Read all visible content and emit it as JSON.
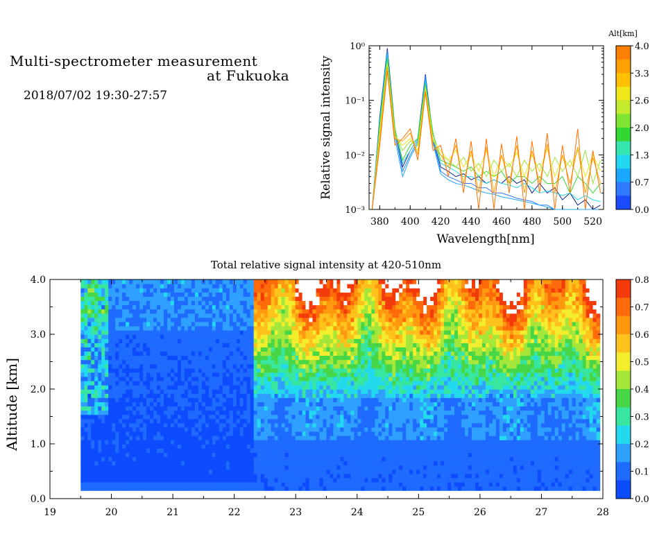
{
  "header": {
    "title_line1": "Multi-spectrometer measurement",
    "title_line2": "at Fukuoka",
    "datetime": "2018/07/02 19:30-27:57"
  },
  "colors": {
    "scale": [
      "#1a4bff",
      "#2f78ff",
      "#19a8ff",
      "#22d8f0",
      "#35e6b0",
      "#33d733",
      "#7ee633",
      "#c3ea2c",
      "#f0e61a",
      "#ffc000",
      "#ffa000",
      "#ff8000"
    ],
    "heat_top": [
      "#0d4bff",
      "#1f6bff",
      "#2fa0ff",
      "#22d9ee",
      "#39e6a0",
      "#46d646",
      "#a4e63a",
      "#f2ee2e",
      "#ffc21c",
      "#ff9a10",
      "#ff6a0a",
      "#f23a0a"
    ]
  },
  "chart_data": [
    {
      "type": "line",
      "xlabel": "Wavelength[nm]",
      "ylabel": "Relative signal intensity",
      "xlim": [
        373,
        527
      ],
      "ylim": [
        0.001,
        1
      ],
      "yscale": "log",
      "xticks": [
        "380",
        "400",
        "420",
        "440",
        "460",
        "480",
        "500",
        "520"
      ],
      "yticks": [
        "10⁰",
        "10⁻¹",
        "10⁻²",
        "10⁻³"
      ],
      "colorbar": {
        "label": "Alt[km]",
        "ticks": [
          "4.0",
          "3.3",
          "2.6",
          "2.0",
          "1.3",
          "0.7",
          "0.0"
        ]
      },
      "x": [
        375,
        380,
        385,
        390,
        395,
        400,
        405,
        410,
        415,
        420,
        425,
        430,
        435,
        440,
        445,
        450,
        455,
        460,
        465,
        470,
        475,
        480,
        485,
        490,
        495,
        500,
        505,
        510,
        515,
        520,
        525
      ],
      "series": [
        {
          "color": "#0a1f8a",
          "values": [
            0.001,
            0.05,
            0.9,
            0.03,
            0.006,
            0.012,
            0.02,
            0.3,
            0.02,
            0.006,
            0.005,
            0.004,
            0.0045,
            0.0035,
            0.004,
            0.003,
            0.0035,
            0.003,
            0.004,
            0.003,
            0.0035,
            0.002,
            0.003,
            0.002,
            0.0025,
            0.0015,
            0.002,
            0.0012,
            0.0015,
            0.001,
            0.0012
          ]
        },
        {
          "color": "#2f78ff",
          "values": [
            0.001,
            0.045,
            0.82,
            0.025,
            0.005,
            0.01,
            0.018,
            0.28,
            0.018,
            0.005,
            0.004,
            0.0035,
            0.003,
            0.003,
            0.0025,
            0.0025,
            0.002,
            0.002,
            0.0018,
            0.0016,
            0.0015,
            0.0014,
            0.0012,
            0.0012,
            0.001,
            0.001,
            0.001,
            0.001,
            0.001,
            0.001,
            0.001
          ]
        },
        {
          "color": "#19a8ff",
          "values": [
            0.001,
            0.04,
            0.75,
            0.02,
            0.004,
            0.009,
            0.016,
            0.25,
            0.016,
            0.0045,
            0.0035,
            0.003,
            0.0028,
            0.0025,
            0.0022,
            0.002,
            0.0019,
            0.0017,
            0.0016,
            0.0015,
            0.0014,
            0.0013,
            0.0012,
            0.0011,
            0.001,
            0.001,
            0.001,
            0.001,
            0.001,
            0.001,
            0.001
          ]
        },
        {
          "color": "#22d8f0",
          "values": [
            0.001,
            0.04,
            0.7,
            0.03,
            0.007,
            0.012,
            0.02,
            0.22,
            0.02,
            0.007,
            0.006,
            0.005,
            0.004,
            0.004,
            0.0035,
            0.003,
            0.0035,
            0.003,
            0.0028,
            0.0025,
            0.003,
            0.0025,
            0.002,
            0.0022,
            0.002,
            0.0018,
            0.002,
            0.0015,
            0.0018,
            0.0015,
            0.0014
          ]
        },
        {
          "color": "#33d733",
          "values": [
            0.001,
            0.035,
            0.6,
            0.03,
            0.008,
            0.015,
            0.02,
            0.2,
            0.025,
            0.008,
            0.007,
            0.006,
            0.005,
            0.006,
            0.004,
            0.005,
            0.004,
            0.005,
            0.003,
            0.004,
            0.004,
            0.003,
            0.004,
            0.003,
            0.003,
            0.004,
            0.002,
            0.004,
            0.003,
            0.002,
            0.003
          ]
        },
        {
          "color": "#9be633",
          "values": [
            0.001,
            0.03,
            0.5,
            0.025,
            0.012,
            0.018,
            0.015,
            0.18,
            0.02,
            0.01,
            0.008,
            0.006,
            0.009,
            0.005,
            0.007,
            0.004,
            0.008,
            0.005,
            0.007,
            0.004,
            0.008,
            0.005,
            0.007,
            0.004,
            0.009,
            0.005,
            0.008,
            0.004,
            0.012,
            0.003,
            0.008
          ]
        },
        {
          "color": "#f0e61a",
          "values": [
            0.001,
            0.025,
            0.45,
            0.022,
            0.015,
            0.02,
            0.012,
            0.16,
            0.018,
            0.012,
            0.008,
            0.012,
            0.006,
            0.01,
            0.005,
            0.012,
            0.004,
            0.009,
            0.006,
            0.011,
            0.004,
            0.01,
            0.005,
            0.013,
            0.004,
            0.009,
            0.006,
            0.012,
            0.004,
            0.01,
            0.005
          ]
        },
        {
          "color": "#ffa000",
          "values": [
            0.001,
            0.02,
            0.4,
            0.02,
            0.018,
            0.025,
            0.01,
            0.15,
            0.015,
            0.01,
            0.006,
            0.015,
            0.003,
            0.012,
            0.002,
            0.014,
            0.002,
            0.01,
            0.003,
            0.015,
            0.002,
            0.012,
            0.003,
            0.016,
            0.002,
            0.01,
            0.003,
            0.014,
            0.002,
            0.009,
            0.003
          ]
        },
        {
          "color": "#ff7000",
          "values": [
            0.001,
            0.015,
            0.35,
            0.015,
            0.02,
            0.03,
            0.008,
            0.14,
            0.012,
            0.015,
            0.004,
            0.02,
            0.002,
            0.018,
            0.001,
            0.02,
            0.001,
            0.016,
            0.002,
            0.022,
            0.001,
            0.018,
            0.002,
            0.025,
            0.001,
            0.015,
            0.002,
            0.03,
            0.001,
            0.012,
            0.002
          ]
        }
      ]
    },
    {
      "type": "heatmap",
      "title": "Total relative signal intensity at 420-510nm",
      "ylabel": "Altitude [km]",
      "xlim": [
        19,
        28
      ],
      "ylim": [
        0,
        4
      ],
      "xticks": [
        "19",
        "20",
        "21",
        "22",
        "23",
        "24",
        "25",
        "26",
        "27",
        "28"
      ],
      "yticks": [
        "0.0",
        "1.0",
        "2.0",
        "3.0",
        "4.0"
      ],
      "value_range": [
        0,
        0.8
      ],
      "colorbar_ticks": [
        "0.8",
        "0.7",
        "0.6",
        "0.5",
        "0.4",
        "0.3",
        "0.2",
        "0.1",
        "0.0"
      ],
      "time_range": [
        19.5,
        27.95
      ],
      "alt_range": [
        0.15,
        4.0
      ],
      "saturated_regions_km_top": [
        3.0,
        4.0
      ]
    }
  ]
}
